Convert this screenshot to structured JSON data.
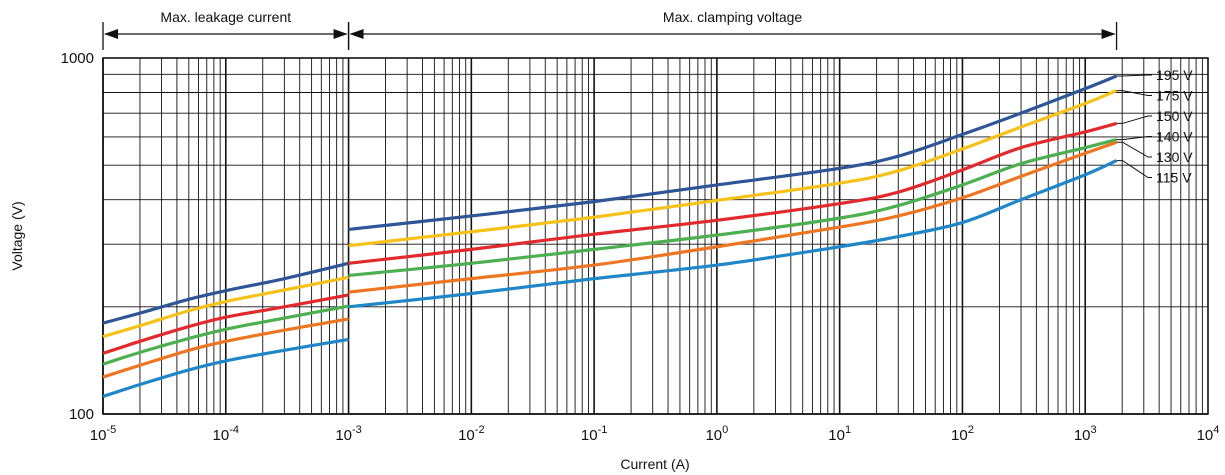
{
  "chart_data": {
    "type": "line",
    "xlabel": "Current (A)",
    "ylabel": "Voltage (V)",
    "x_scale": "log",
    "y_scale": "log",
    "xlim": [
      1e-05,
      10000
    ],
    "ylim": [
      100,
      1000
    ],
    "grid": true,
    "x_ticks": [
      {
        "base": "10",
        "exp": "-5",
        "value": 1e-05
      },
      {
        "base": "10",
        "exp": "-4",
        "value": 0.0001
      },
      {
        "base": "10",
        "exp": "-3",
        "value": 0.001
      },
      {
        "base": "10",
        "exp": "-2",
        "value": 0.01
      },
      {
        "base": "10",
        "exp": "-1",
        "value": 0.1
      },
      {
        "base": "10",
        "exp": "0",
        "value": 1
      },
      {
        "base": "10",
        "exp": "1",
        "value": 10
      },
      {
        "base": "10",
        "exp": "2",
        "value": 100
      },
      {
        "base": "10",
        "exp": "3",
        "value": 1000
      },
      {
        "base": "10",
        "exp": "4",
        "value": 10000
      }
    ],
    "y_ticks": [
      {
        "label": "100",
        "value": 100
      },
      {
        "label": "1000",
        "value": 1000
      }
    ],
    "regions": [
      {
        "label": "Max. leakage current",
        "x_from": 1e-05,
        "x_to": 0.001
      },
      {
        "label": "Max. clamping voltage",
        "x_from": 0.001,
        "x_to": 1800
      }
    ],
    "series": [
      {
        "name": "195 V",
        "color": "#2e5596",
        "leakage": {
          "x": [
            1e-05,
            2e-05,
            5e-05,
            0.0001,
            0.0003,
            0.001
          ],
          "y": [
            180,
            192,
            210,
            222,
            240,
            265
          ]
        },
        "clamping": {
          "x": [
            0.001,
            0.01,
            0.1,
            1,
            10,
            30,
            100,
            300,
            1000,
            1800
          ],
          "y": [
            330,
            360,
            395,
            440,
            490,
            530,
            610,
            700,
            820,
            890
          ]
        }
      },
      {
        "name": "175 V",
        "color": "#f6c21a",
        "leakage": {
          "x": [
            1e-05,
            2e-05,
            5e-05,
            0.0001,
            0.0003,
            0.001
          ],
          "y": [
            165,
            177,
            195,
            207,
            223,
            242
          ]
        },
        "clamping": {
          "x": [
            0.001,
            0.01,
            0.1,
            1,
            10,
            30,
            100,
            300,
            1000,
            1800
          ],
          "y": [
            297,
            325,
            357,
            398,
            445,
            482,
            555,
            640,
            745,
            810
          ]
        }
      },
      {
        "name": "150 V",
        "color": "#e22a2c",
        "leakage": {
          "x": [
            1e-05,
            2e-05,
            5e-05,
            0.0001,
            0.0003,
            0.001
          ],
          "y": [
            148,
            160,
            176,
            187,
            200,
            216
          ]
        },
        "clamping": {
          "x": [
            0.001,
            0.01,
            0.1,
            1,
            10,
            30,
            100,
            300,
            1000,
            1800
          ],
          "y": [
            265,
            290,
            320,
            350,
            390,
            420,
            485,
            560,
            620,
            655
          ]
        }
      },
      {
        "name": "140 V",
        "color": "#4caf50",
        "leakage": {
          "x": [
            1e-05,
            2e-05,
            5e-05,
            0.0001,
            0.0003,
            0.001
          ],
          "y": [
            138,
            149,
            163,
            173,
            186,
            201
          ]
        },
        "clamping": {
          "x": [
            0.001,
            0.01,
            0.1,
            1,
            10,
            30,
            100,
            300,
            1000,
            1800
          ],
          "y": [
            245,
            265,
            290,
            318,
            355,
            385,
            440,
            505,
            560,
            590
          ]
        }
      },
      {
        "name": "130 V",
        "color": "#ee7623",
        "leakage": {
          "x": [
            1e-05,
            2e-05,
            5e-05,
            0.0001,
            0.0003,
            0.001
          ],
          "y": [
            127,
            137,
            151,
            160,
            172,
            185
          ]
        },
        "clamping": {
          "x": [
            0.001,
            0.01,
            0.1,
            1,
            10,
            30,
            100,
            300,
            1000,
            1800
          ],
          "y": [
            220,
            240,
            262,
            295,
            335,
            360,
            405,
            465,
            540,
            580
          ]
        }
      },
      {
        "name": "115 V",
        "color": "#1f86c8",
        "leakage": {
          "x": [
            1e-05,
            2e-05,
            5e-05,
            0.0001,
            0.0003,
            0.001
          ],
          "y": [
            112,
            121,
            133,
            141,
            151,
            162
          ]
        },
        "clamping": {
          "x": [
            0.001,
            0.01,
            0.1,
            1,
            10,
            30,
            100,
            300,
            1000,
            1800
          ],
          "y": [
            200,
            218,
            240,
            262,
            295,
            315,
            345,
            400,
            470,
            515
          ]
        }
      }
    ]
  }
}
